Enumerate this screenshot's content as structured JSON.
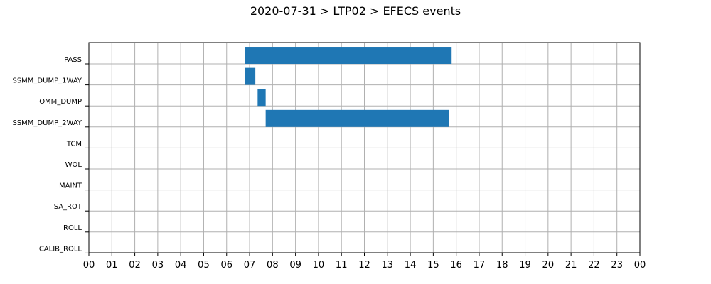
{
  "chart_data": {
    "type": "gantt",
    "title": "2020-07-31 > LTP02 > EFECS events",
    "xlabel": "",
    "ylabel": "",
    "x_unit": "hour",
    "xlim": [
      0,
      24
    ],
    "x_tick_labels": [
      "00",
      "01",
      "02",
      "03",
      "04",
      "05",
      "06",
      "07",
      "08",
      "09",
      "10",
      "11",
      "12",
      "13",
      "14",
      "15",
      "16",
      "17",
      "18",
      "19",
      "20",
      "21",
      "22",
      "23",
      "00"
    ],
    "categories": [
      "PASS",
      "SSMM_DUMP_1WAY",
      "OMM_DUMP",
      "SSMM_DUMP_2WAY",
      "TCM",
      "WOL",
      "MAINT",
      "SA_ROT",
      "ROLL",
      "CALIB_ROLL"
    ],
    "grid": true,
    "bar_color": "#1f77b4",
    "events": [
      {
        "category": "PASS",
        "start": 6.8,
        "end": 15.8
      },
      {
        "category": "SSMM_DUMP_1WAY",
        "start": 6.8,
        "end": 7.25
      },
      {
        "category": "OMM_DUMP",
        "start": 7.35,
        "end": 7.7
      },
      {
        "category": "SSMM_DUMP_2WAY",
        "start": 7.7,
        "end": 15.7
      }
    ]
  }
}
